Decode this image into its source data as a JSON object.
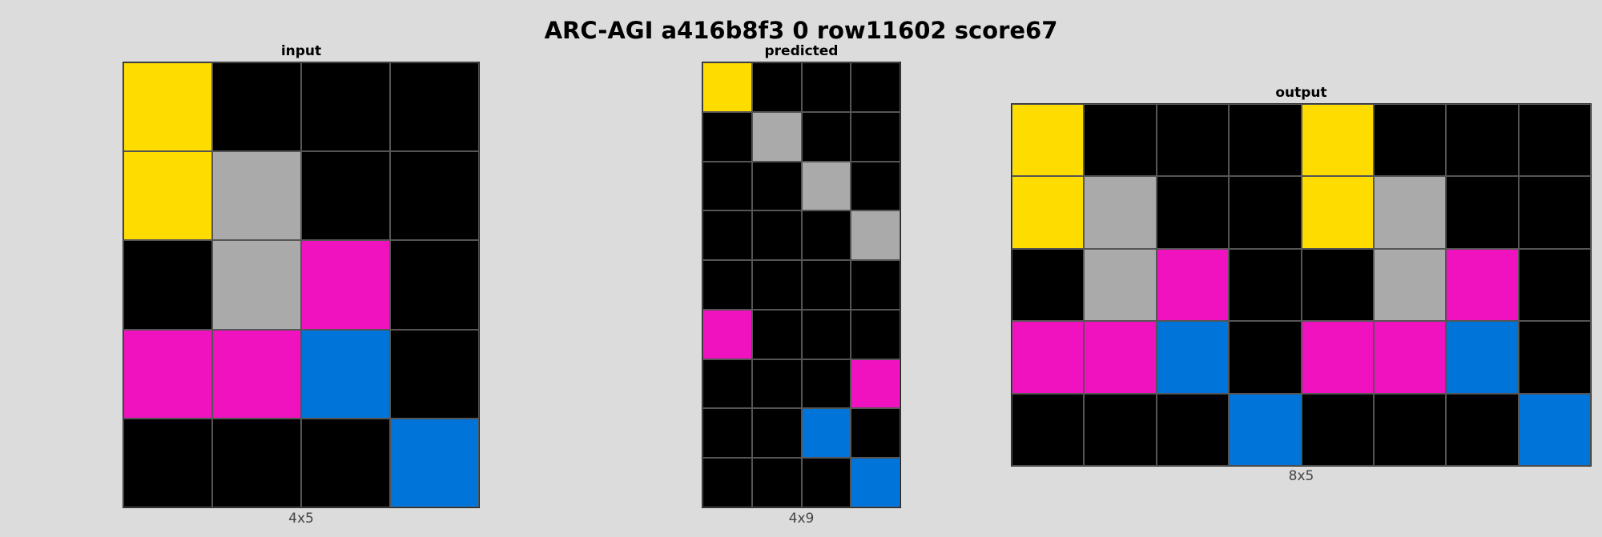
{
  "title": "ARC-AGI a416b8f3 0 row11602 score67",
  "palette": {
    "0": "#000000",
    "4": "#ffdc00",
    "5": "#aaaaaa",
    "6": "#f012be",
    "1": "#0074d9"
  },
  "panels": [
    {
      "key": "input",
      "title": "input",
      "dims_label": "4x5",
      "cols": 4,
      "rows": 5,
      "cells": [
        [
          4,
          0,
          0,
          0
        ],
        [
          4,
          5,
          0,
          0
        ],
        [
          0,
          5,
          6,
          0
        ],
        [
          6,
          6,
          1,
          0
        ],
        [
          0,
          0,
          0,
          1
        ]
      ]
    },
    {
      "key": "predicted",
      "title": "predicted",
      "dims_label": "4x9",
      "cols": 4,
      "rows": 9,
      "cells": [
        [
          4,
          0,
          0,
          0
        ],
        [
          0,
          5,
          0,
          0
        ],
        [
          0,
          0,
          5,
          0
        ],
        [
          0,
          0,
          0,
          5
        ],
        [
          0,
          0,
          0,
          0
        ],
        [
          6,
          0,
          0,
          0
        ],
        [
          0,
          0,
          0,
          6
        ],
        [
          0,
          0,
          1,
          0
        ],
        [
          0,
          0,
          0,
          1
        ]
      ]
    },
    {
      "key": "output",
      "title": "output",
      "dims_label": "8x5",
      "cols": 8,
      "rows": 5,
      "cells": [
        [
          4,
          0,
          0,
          0,
          4,
          0,
          0,
          0
        ],
        [
          4,
          5,
          0,
          0,
          4,
          5,
          0,
          0
        ],
        [
          0,
          5,
          6,
          0,
          0,
          5,
          6,
          0
        ],
        [
          6,
          6,
          1,
          0,
          6,
          6,
          1,
          0
        ],
        [
          0,
          0,
          0,
          1,
          0,
          0,
          0,
          1
        ]
      ]
    }
  ]
}
